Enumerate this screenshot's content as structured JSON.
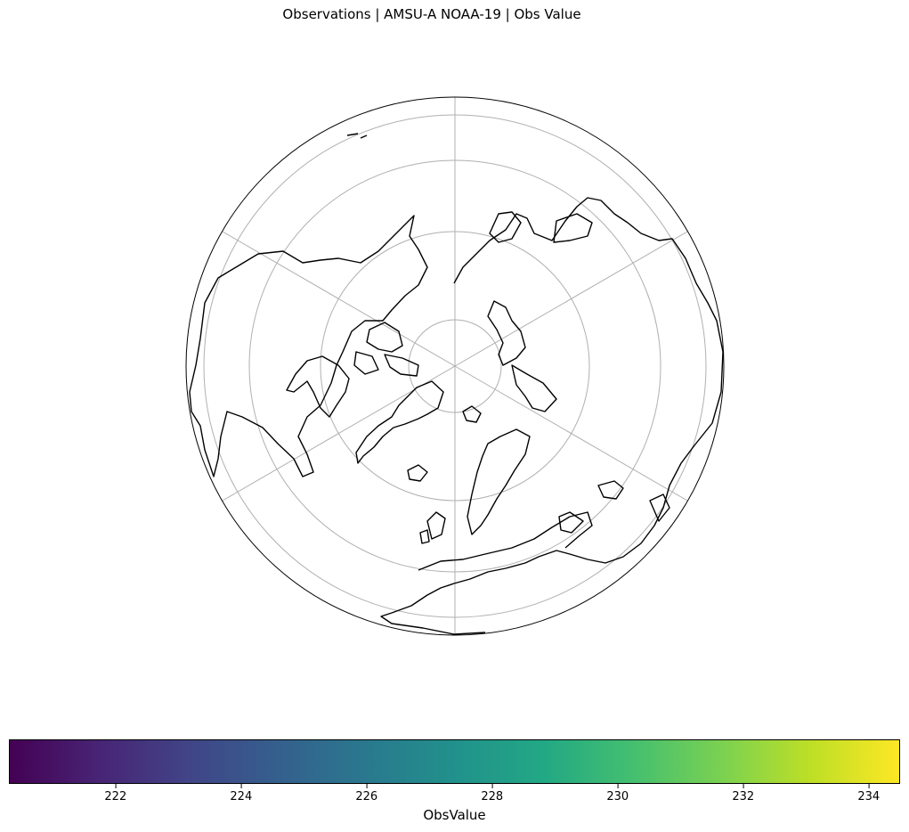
{
  "title": "Observations | AMSU-A NOAA-19 | Obs Value",
  "map": {
    "projection": "north-polar-stereographic",
    "features": [
      "coastlines",
      "gridlines"
    ],
    "observations_shown": 0
  },
  "colorbar": {
    "label": "ObsValue",
    "colormap": "viridis",
    "range": [
      220.3,
      234.5
    ],
    "ticks": [
      "222",
      "224",
      "226",
      "228",
      "230",
      "232",
      "234"
    ],
    "tick_values": [
      222,
      224,
      226,
      228,
      230,
      232,
      234
    ],
    "stops": [
      "#440154",
      "#482475",
      "#414487",
      "#355f8d",
      "#2a788e",
      "#21918c",
      "#22a884",
      "#44bf70",
      "#7ad151",
      "#bddf26",
      "#fde725"
    ]
  }
}
